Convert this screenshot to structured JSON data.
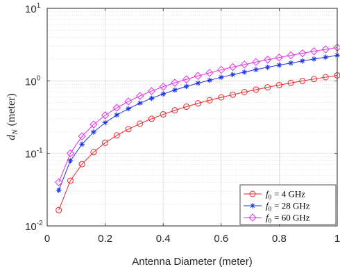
{
  "chart_data": {
    "type": "line",
    "xlabel": "Antenna Diameter (meter)",
    "ylabel": {
      "symbol": "d",
      "subscript": "N",
      "unit": "(meter)"
    },
    "xlim": [
      0,
      1
    ],
    "ylim": [
      0.01,
      10
    ],
    "yscale": "log",
    "grid": true,
    "minor_grid": true,
    "legend_position": "bottom-right",
    "x_ticks": [
      "0",
      "0.2",
      "0.4",
      "0.6",
      "0.8",
      "1"
    ],
    "y_ticks": [
      {
        "base": "10",
        "exp": "-2"
      },
      {
        "base": "10",
        "exp": "-1"
      },
      {
        "base": "10",
        "exp": "0"
      },
      {
        "base": "10",
        "exp": "1"
      }
    ],
    "x": [
      0.04,
      0.08,
      0.12,
      0.16,
      0.2,
      0.24,
      0.28,
      0.32,
      0.36,
      0.4,
      0.44,
      0.48,
      0.52,
      0.56,
      0.6,
      0.64,
      0.68,
      0.72,
      0.76,
      0.8,
      0.84,
      0.88,
      0.92,
      0.96,
      1.0
    ],
    "series": [
      {
        "name": "f0 = 4 GHz",
        "label_symbol": "f",
        "label_subscript": "0",
        "label_rest": "= 4 GHz",
        "color": "#e8262a",
        "marker": "circle",
        "values": [
          0.0165,
          0.042,
          0.071,
          0.104,
          0.14,
          0.177,
          0.216,
          0.257,
          0.3,
          0.345,
          0.392,
          0.44,
          0.49,
          0.54,
          0.592,
          0.645,
          0.7,
          0.757,
          0.815,
          0.875,
          0.936,
          0.998,
          1.06,
          1.125,
          1.19
        ]
      },
      {
        "name": "f0 = 28 GHz",
        "label_symbol": "f",
        "label_subscript": "0",
        "label_rest": "= 28 GHz",
        "color": "#1f35e8",
        "marker": "star",
        "values": [
          0.031,
          0.079,
          0.134,
          0.197,
          0.265,
          0.338,
          0.413,
          0.493,
          0.575,
          0.66,
          0.748,
          0.838,
          0.93,
          1.02,
          1.12,
          1.22,
          1.32,
          1.43,
          1.54,
          1.65,
          1.76,
          1.88,
          2.0,
          2.12,
          2.25
        ]
      },
      {
        "name": "f0 = 60 GHz",
        "label_symbol": "f",
        "label_subscript": "0",
        "label_rest": "= 60 GHz",
        "color": "#e62ee6",
        "marker": "diamond",
        "values": [
          0.04,
          0.1,
          0.172,
          0.25,
          0.335,
          0.425,
          0.52,
          0.62,
          0.722,
          0.83,
          0.94,
          1.05,
          1.17,
          1.29,
          1.42,
          1.55,
          1.68,
          1.82,
          1.96,
          2.1,
          2.25,
          2.4,
          2.56,
          2.72,
          2.88
        ]
      }
    ]
  }
}
